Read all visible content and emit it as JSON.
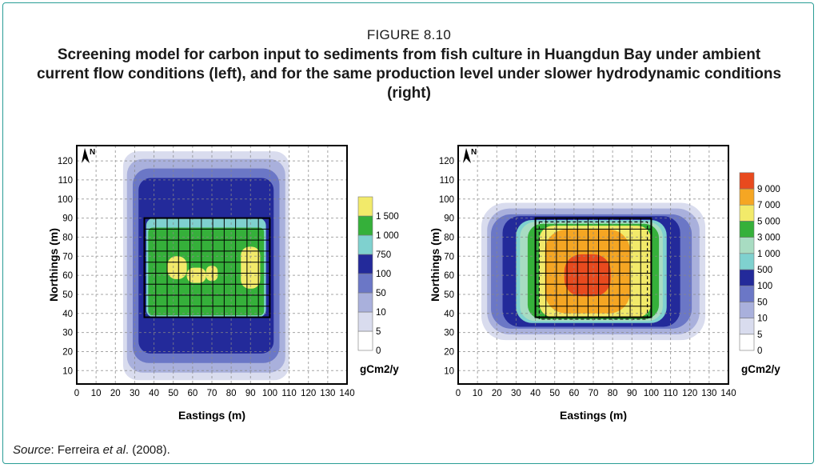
{
  "figure": {
    "label": "FIGURE 8.10",
    "title": "Screening model for carbon input to sediments from fish culture in Huangdun Bay under ambient current flow conditions (left), and for the same production level under slower hydrodynamic conditions (right)",
    "source_label": "Source",
    "source_author": "Ferreira ",
    "source_etal": "et al",
    "source_year": ". (2008)."
  },
  "chart_data": [
    {
      "type": "heatmap",
      "xlabel": "Eastings (m)",
      "ylabel": "Northings (m)",
      "xticks": [
        0,
        10,
        20,
        30,
        40,
        50,
        60,
        70,
        80,
        90,
        100,
        110,
        120,
        130,
        140
      ],
      "yticks": [
        10,
        20,
        30,
        40,
        50,
        60,
        70,
        80,
        90,
        100,
        110,
        120
      ],
      "xlim": [
        0,
        140
      ],
      "ylim": [
        3,
        128
      ],
      "grid": true,
      "north_arrow": "N",
      "farm_area": {
        "x": [
          35,
          100
        ],
        "y": [
          38,
          90
        ]
      },
      "legend": {
        "unit": "gCm2/y",
        "levels": [
          {
            "label": "0",
            "color": "#ffffff"
          },
          {
            "label": "5",
            "color": "#d9dcee"
          },
          {
            "label": "10",
            "color": "#a9b0dc"
          },
          {
            "label": "50",
            "color": "#6b77c6"
          },
          {
            "label": "100",
            "color": "#232a9a"
          },
          {
            "label": "750",
            "color": "#7fd1cf"
          },
          {
            "label": "1 000",
            "color": "#35b03a"
          },
          {
            "label": "1 500",
            "color": "#f2ea6a"
          }
        ]
      }
    },
    {
      "type": "heatmap",
      "xlabel": "Eastings (m)",
      "ylabel": "Northings (m)",
      "xticks": [
        0,
        10,
        20,
        30,
        40,
        50,
        60,
        70,
        80,
        90,
        100,
        110,
        120,
        130,
        140
      ],
      "yticks": [
        10,
        20,
        30,
        40,
        50,
        60,
        70,
        80,
        90,
        100,
        110,
        120
      ],
      "xlim": [
        0,
        140
      ],
      "ylim": [
        3,
        128
      ],
      "grid": true,
      "north_arrow": "N",
      "farm_area": {
        "x": [
          40,
          100
        ],
        "y": [
          38,
          90
        ]
      },
      "legend": {
        "unit": "gCm2/y",
        "levels": [
          {
            "label": "0",
            "color": "#ffffff"
          },
          {
            "label": "5",
            "color": "#d9dcee"
          },
          {
            "label": "10",
            "color": "#a9b0dc"
          },
          {
            "label": "50",
            "color": "#6b77c6"
          },
          {
            "label": "100",
            "color": "#232a9a"
          },
          {
            "label": "500",
            "color": "#7fd1cf"
          },
          {
            "label": "1 000",
            "color": "#a8dcc2"
          },
          {
            "label": "3 000",
            "color": "#35b03a"
          },
          {
            "label": "5 000",
            "color": "#f2ea6a"
          },
          {
            "label": "7 000",
            "color": "#f5a623"
          },
          {
            "label": "9 000",
            "color": "#e84a1e"
          }
        ]
      }
    }
  ]
}
